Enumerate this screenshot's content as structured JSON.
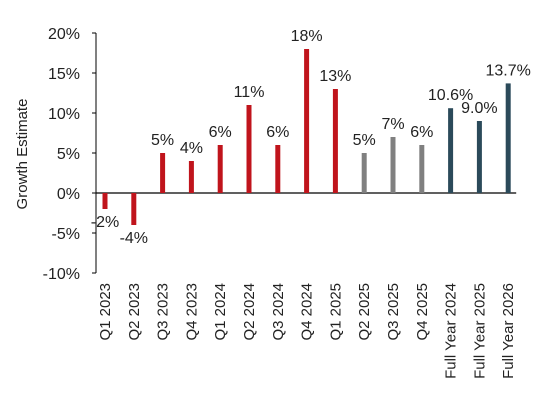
{
  "chart_data": {
    "type": "bar",
    "title": "",
    "xlabel": "",
    "ylabel": "Growth Estimate",
    "ylim": [
      -10,
      20
    ],
    "yticks": [
      -10,
      -5,
      0,
      5,
      10,
      15,
      20
    ],
    "ytick_labels": [
      "-10%",
      "-5%",
      "0%",
      "5%",
      "10%",
      "15%",
      "20%"
    ],
    "grid": false,
    "legend": "none",
    "categories": [
      "Q1 2023",
      "Q2 2023",
      "Q3 2023",
      "Q4 2023",
      "Q1 2024",
      "Q2 2024",
      "Q3 2024",
      "Q4 2024",
      "Q1 2025",
      "Q2 2025",
      "Q3 2025",
      "Q4 2025",
      "Full Year 2024",
      "Full Year 2025",
      "Full Year 2026"
    ],
    "values": [
      -2,
      -4,
      5,
      4,
      6,
      11,
      6,
      18,
      13,
      5,
      7,
      6,
      10.6,
      9.0,
      13.7
    ],
    "data_labels": [
      "-2%",
      "-4%",
      "5%",
      "4%",
      "6%",
      "11%",
      "6%",
      "18%",
      "13%",
      "5%",
      "7%",
      "6%",
      "10.6%",
      "9.0%",
      "13.7%"
    ],
    "bar_colors": [
      "#c0141c",
      "#c0141c",
      "#c0141c",
      "#c0141c",
      "#c0141c",
      "#c0141c",
      "#c0141c",
      "#c0141c",
      "#c0141c",
      "#808080",
      "#808080",
      "#808080",
      "#2b4a5a",
      "#2b4a5a",
      "#2b4a5a"
    ],
    "colors": {
      "actual": "#c0141c",
      "estimate_quarterly": "#808080",
      "full_year": "#2b4a5a",
      "axis": "#000000",
      "text": "#222222"
    }
  }
}
